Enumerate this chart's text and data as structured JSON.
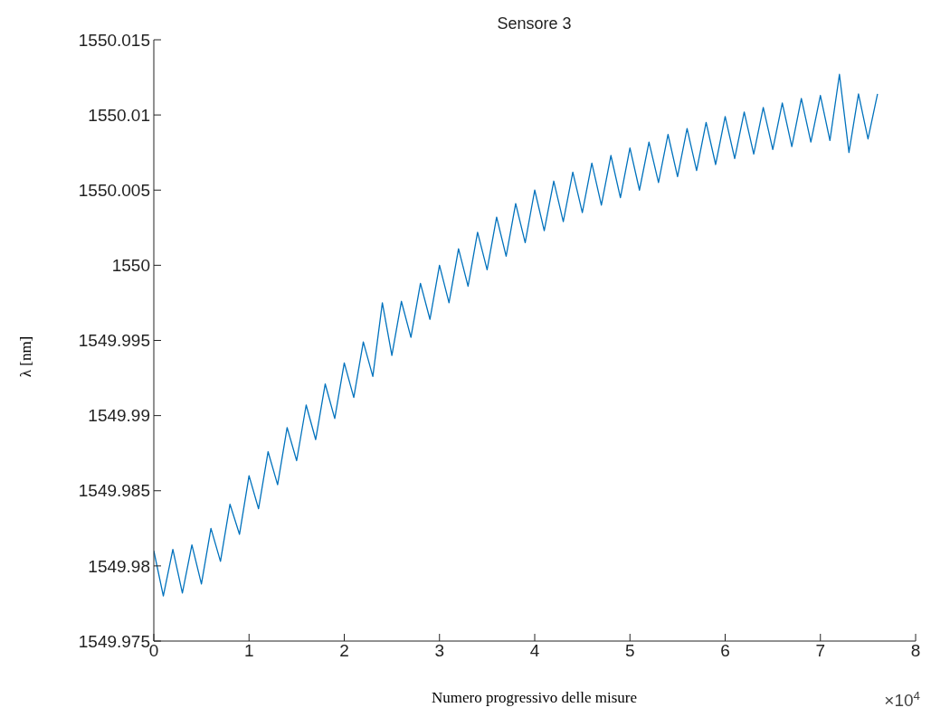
{
  "chart_data": {
    "type": "line",
    "title": "Sensore 3",
    "xlabel": "Numero progressivo delle misure",
    "ylabel": "λ [nm]",
    "annotations": [
      "×10$^{4}$"
    ],
    "x": [
      0,
      0.1,
      0.2,
      0.3,
      0.4,
      0.5,
      0.6,
      0.7,
      0.8,
      0.9,
      1,
      1.1,
      1.2,
      1.3,
      1.4,
      1.5,
      1.6,
      1.7,
      1.8,
      1.9,
      2,
      2.1,
      2.2,
      2.3,
      2.4,
      2.5,
      2.6,
      2.7,
      2.8,
      2.9,
      3,
      3.1,
      3.2,
      3.3,
      3.4,
      3.5,
      3.6,
      3.7,
      3.8,
      3.9,
      4,
      4.1,
      4.2,
      4.3,
      4.4,
      4.5,
      4.6,
      4.7,
      4.8,
      4.9,
      5,
      5.1,
      5.2,
      5.3,
      5.4,
      5.5,
      5.6,
      5.7,
      5.8,
      5.9,
      6,
      6.1,
      6.2,
      6.3,
      6.4,
      6.5,
      6.6,
      6.7,
      6.8,
      6.9,
      7,
      7.1,
      7.2,
      7.3,
      7.4,
      7.5,
      7.6
    ],
    "series": [
      {
        "color": "#0072bd",
        "values": [
          1549.981,
          1549.978,
          1549.9811,
          1549.9782,
          1549.9814,
          1549.9788,
          1549.9825,
          1549.9803,
          1549.9841,
          1549.9821,
          1549.986,
          1549.9838,
          1549.9876,
          1549.9854,
          1549.9892,
          1549.987,
          1549.9907,
          1549.9884,
          1549.9921,
          1549.9898,
          1549.9935,
          1549.9912,
          1549.9949,
          1549.9926,
          1549.9975,
          1549.994,
          1549.9976,
          1549.9952,
          1549.9988,
          1549.9964,
          1550.0,
          1549.9975,
          1550.0011,
          1549.9986,
          1550.0022,
          1549.9997,
          1550.0032,
          1550.0006,
          1550.0041,
          1550.0015,
          1550.005,
          1550.0023,
          1550.0056,
          1550.0029,
          1550.0062,
          1550.0035,
          1550.0068,
          1550.004,
          1550.0073,
          1550.0045,
          1550.0078,
          1550.005,
          1550.0082,
          1550.0055,
          1550.0087,
          1550.0059,
          1550.0091,
          1550.0063,
          1550.0095,
          1550.0067,
          1550.0099,
          1550.0071,
          1550.0102,
          1550.0074,
          1550.0105,
          1550.0077,
          1550.0108,
          1550.0079,
          1550.0111,
          1550.0082,
          1550.0113,
          1550.0083,
          1550.0127,
          1550.0075,
          1550.0114,
          1550.0084,
          1550.0114
        ]
      }
    ],
    "xlim": [
      0,
      8
    ],
    "xticks": [
      0,
      1,
      2,
      3,
      4,
      5,
      6,
      7,
      8
    ],
    "ylim": [
      1549.975,
      1550.015
    ],
    "yticks": [
      1549.975,
      1549.98,
      1549.985,
      1549.99,
      1549.995,
      1550,
      1550.005,
      1550.01,
      1550.015
    ],
    "grid": false,
    "legend": false,
    "marker": "none",
    "line_style": "solid"
  }
}
